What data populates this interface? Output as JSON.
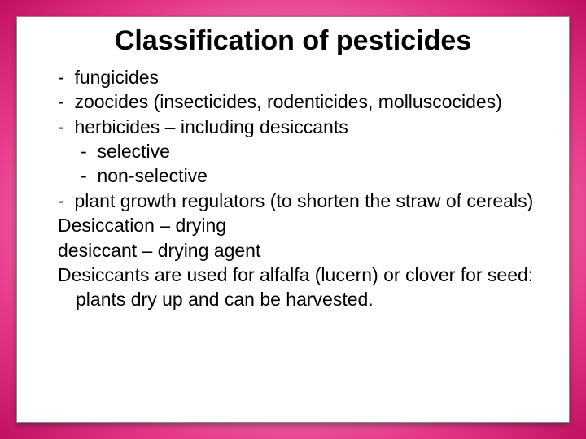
{
  "title": "Classification of pesticides",
  "items": {
    "i1": "fungicides",
    "i2": "zoocides (insecticides, rodenticides, molluscocides)",
    "i3": "herbicides – including desiccants",
    "i3a": "selective",
    "i3b": "non-selective",
    "i4": "plant growth regulators (to shorten the straw of cereals)"
  },
  "defs": {
    "d1": "Desiccation – drying",
    "d2": "desiccant – drying agent",
    "d3": "Desiccants are used for alfalfa (lucern) or clover for seed: plants dry up and can be harvested."
  },
  "colors": {
    "text": "#000000",
    "card_bg": "#ffffff",
    "frame_inner": "#ffc0d8",
    "frame_outer": "#c01060"
  },
  "typography": {
    "title_fontsize": 34,
    "body_fontsize": 23,
    "font_family": "Arial"
  },
  "bullet": "-"
}
